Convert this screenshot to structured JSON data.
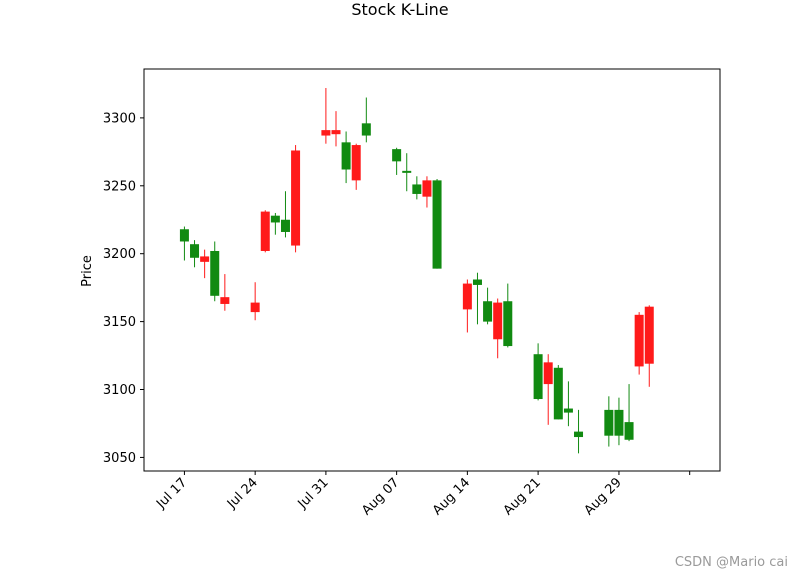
{
  "chart_data": {
    "type": "candlestick",
    "title": "Stock K-Line",
    "xlabel": "",
    "ylabel": "Price",
    "ylim": [
      3040,
      3336
    ],
    "yticks": [
      3050,
      3100,
      3150,
      3200,
      3250,
      3300
    ],
    "xticks": [
      {
        "date": "2023-07-17",
        "label": "Jul 17"
      },
      {
        "date": "2023-07-24",
        "label": "Jul 24"
      },
      {
        "date": "2023-07-31",
        "label": "Jul 31"
      },
      {
        "date": "2023-08-07",
        "label": "Aug 07"
      },
      {
        "date": "2023-08-14",
        "label": "Aug 14"
      },
      {
        "date": "2023-08-21",
        "label": "Aug 21"
      },
      {
        "date": "2023-08-29",
        "label": "Aug 29"
      },
      {
        "date": "2023-09-05",
        "label": ""
      }
    ],
    "xlim": [
      "2023-07-13",
      "2023-09-08"
    ],
    "colors": {
      "up": "#ff1a1a",
      "down": "#118a11"
    },
    "candles": [
      {
        "date": "2023-07-17",
        "open": 3218,
        "high": 3220,
        "low": 3195,
        "close": 3209
      },
      {
        "date": "2023-07-18",
        "open": 3207,
        "high": 3210,
        "low": 3190,
        "close": 3197
      },
      {
        "date": "2023-07-19",
        "open": 3194,
        "high": 3203,
        "low": 3182,
        "close": 3198
      },
      {
        "date": "2023-07-20",
        "open": 3202,
        "high": 3209,
        "low": 3165,
        "close": 3169
      },
      {
        "date": "2023-07-21",
        "open": 3163,
        "high": 3185,
        "low": 3158,
        "close": 3168
      },
      {
        "date": "2023-07-24",
        "open": 3157,
        "high": 3179,
        "low": 3151,
        "close": 3164
      },
      {
        "date": "2023-07-25",
        "open": 3202,
        "high": 3232,
        "low": 3201,
        "close": 3231
      },
      {
        "date": "2023-07-26",
        "open": 3228,
        "high": 3230,
        "low": 3214,
        "close": 3223
      },
      {
        "date": "2023-07-27",
        "open": 3225,
        "high": 3246,
        "low": 3212,
        "close": 3216
      },
      {
        "date": "2023-07-28",
        "open": 3206,
        "high": 3280,
        "low": 3201,
        "close": 3276
      },
      {
        "date": "2023-07-31",
        "open": 3287,
        "high": 3322,
        "low": 3281,
        "close": 3291
      },
      {
        "date": "2023-08-01",
        "open": 3288,
        "high": 3305,
        "low": 3279,
        "close": 3291
      },
      {
        "date": "2023-08-02",
        "open": 3282,
        "high": 3290,
        "low": 3252,
        "close": 3262
      },
      {
        "date": "2023-08-03",
        "open": 3254,
        "high": 3281,
        "low": 3247,
        "close": 3280
      },
      {
        "date": "2023-08-04",
        "open": 3296,
        "high": 3315,
        "low": 3282,
        "close": 3287
      },
      {
        "date": "2023-08-07",
        "open": 3277,
        "high": 3278,
        "low": 3258,
        "close": 3268
      },
      {
        "date": "2023-08-08",
        "open": 3261,
        "high": 3274,
        "low": 3246,
        "close": 3260
      },
      {
        "date": "2023-08-09",
        "open": 3251,
        "high": 3257,
        "low": 3240,
        "close": 3244
      },
      {
        "date": "2023-08-10",
        "open": 3242,
        "high": 3257,
        "low": 3234,
        "close": 3254
      },
      {
        "date": "2023-08-11",
        "open": 3254,
        "high": 3255,
        "low": 3189,
        "close": 3189
      },
      {
        "date": "2023-08-14",
        "open": 3159,
        "high": 3181,
        "low": 3142,
        "close": 3178
      },
      {
        "date": "2023-08-15",
        "open": 3181,
        "high": 3186,
        "low": 3148,
        "close": 3177
      },
      {
        "date": "2023-08-16",
        "open": 3165,
        "high": 3175,
        "low": 3148,
        "close": 3150
      },
      {
        "date": "2023-08-17",
        "open": 3137,
        "high": 3167,
        "low": 3123,
        "close": 3164
      },
      {
        "date": "2023-08-18",
        "open": 3165,
        "high": 3178,
        "low": 3131,
        "close": 3132
      },
      {
        "date": "2023-08-21",
        "open": 3126,
        "high": 3134,
        "low": 3092,
        "close": 3093
      },
      {
        "date": "2023-08-22",
        "open": 3104,
        "high": 3126,
        "low": 3074,
        "close": 3120
      },
      {
        "date": "2023-08-23",
        "open": 3116,
        "high": 3118,
        "low": 3078,
        "close": 3078
      },
      {
        "date": "2023-08-24",
        "open": 3086,
        "high": 3106,
        "low": 3073,
        "close": 3083
      },
      {
        "date": "2023-08-25",
        "open": 3069,
        "high": 3085,
        "low": 3053,
        "close": 3065
      },
      {
        "date": "2023-08-28",
        "open": 3085,
        "high": 3095,
        "low": 3058,
        "close": 3066
      },
      {
        "date": "2023-08-29",
        "open": 3085,
        "high": 3094,
        "low": 3059,
        "close": 3066
      },
      {
        "date": "2023-08-30",
        "open": 3076,
        "high": 3104,
        "low": 3062,
        "close": 3063
      },
      {
        "date": "2023-08-31",
        "open": 3117,
        "high": 3157,
        "low": 3111,
        "close": 3155
      },
      {
        "date": "2023-09-01",
        "open": 3119,
        "high": 3162,
        "low": 3102,
        "close": 3161
      }
    ]
  },
  "watermark": "CSDN @Mario cai"
}
